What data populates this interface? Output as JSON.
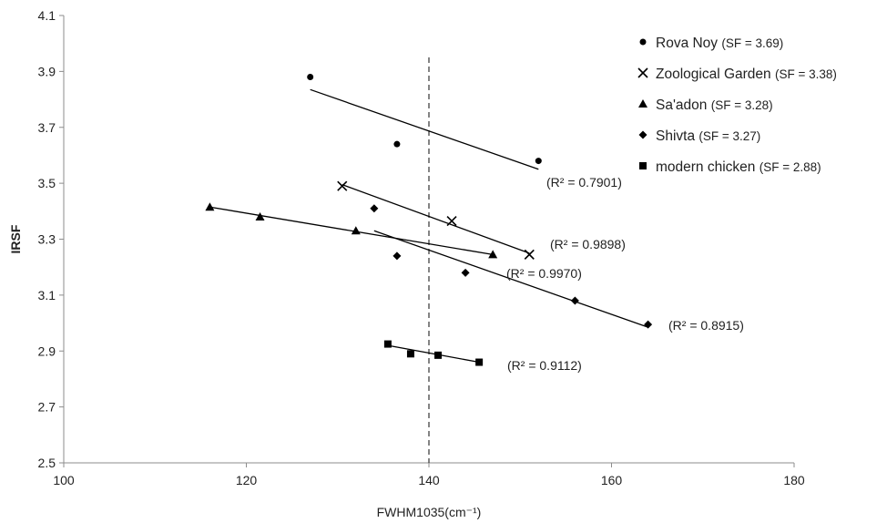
{
  "chart_data": {
    "type": "scatter",
    "xlabel": "FWHM1035(cm⁻¹)",
    "ylabel": "IRSF",
    "xlim": [
      100,
      180
    ],
    "ylim": [
      2.5,
      4.1
    ],
    "x_ticks": [
      "100",
      "120",
      "140",
      "160",
      "180"
    ],
    "y_ticks": [
      "2.5",
      "2.7",
      "2.9",
      "3.1",
      "3.3",
      "3.5",
      "3.7",
      "3.9",
      "4.1"
    ],
    "reference_line_x": 140,
    "legend_position": "top-right",
    "series": [
      {
        "name": "Rova Noy",
        "legend_suffix": "(SF = 3.69)",
        "marker": "circle",
        "points": [
          [
            127.0,
            3.88
          ],
          [
            136.5,
            3.64
          ],
          [
            152.0,
            3.58
          ]
        ],
        "trendline": [
          [
            127.0,
            3.835
          ],
          [
            152.0,
            3.55
          ]
        ],
        "r2_label": "(R² = 0.7901)"
      },
      {
        "name": "Zoological Garden",
        "legend_suffix": "(SF = 3.38)",
        "marker": "x",
        "points": [
          [
            130.5,
            3.49
          ],
          [
            142.5,
            3.365
          ],
          [
            151.0,
            3.245
          ]
        ],
        "trendline": [
          [
            130.5,
            3.495
          ],
          [
            151.0,
            3.25
          ]
        ],
        "r2_label": "(R² = 0.9898)"
      },
      {
        "name": "Sa'adon",
        "legend_suffix": "(SF = 3.28)",
        "marker": "triangle",
        "points": [
          [
            116.0,
            3.415
          ],
          [
            121.5,
            3.38
          ],
          [
            132.0,
            3.33
          ],
          [
            147.0,
            3.245
          ]
        ],
        "trendline": [
          [
            116.0,
            3.415
          ],
          [
            147.0,
            3.245
          ]
        ],
        "r2_label": "(R² = 0.9970)"
      },
      {
        "name": "Shivta",
        "legend_suffix": "(SF = 3.27)",
        "marker": "diamond",
        "points": [
          [
            134.0,
            3.41
          ],
          [
            136.5,
            3.24
          ],
          [
            144.0,
            3.18
          ],
          [
            156.0,
            3.08
          ],
          [
            164.0,
            2.995
          ]
        ],
        "trendline": [
          [
            134.0,
            3.33
          ],
          [
            164.0,
            2.985
          ]
        ],
        "r2_label": "(R² = 0.8915)"
      },
      {
        "name": "modern chicken",
        "legend_suffix": "(SF = 2.88)",
        "marker": "square",
        "points": [
          [
            135.5,
            2.925
          ],
          [
            138.0,
            2.89
          ],
          [
            141.0,
            2.885
          ],
          [
            145.5,
            2.86
          ]
        ],
        "trendline": [
          [
            135.5,
            2.92
          ],
          [
            145.5,
            2.86
          ]
        ],
        "r2_label": "(R² = 0.9112)"
      }
    ]
  }
}
